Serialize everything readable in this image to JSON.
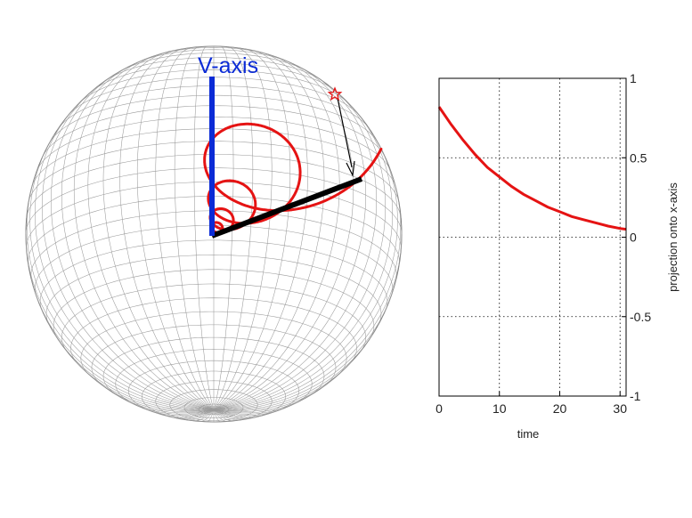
{
  "sphere": {
    "axis_label": "V-axis",
    "colors": {
      "v_axis": "#0b2bd6",
      "trajectory": "#e51313",
      "x_axis_line": "#000000",
      "grid": "#9a9a9a"
    },
    "icons": {
      "start_marker": "red-star",
      "arrow": "black-arrow"
    }
  },
  "chart_data": {
    "type": "line",
    "title": "",
    "xlabel": "time",
    "ylabel": "projection onto x-axis",
    "xlim": [
      0,
      31
    ],
    "ylim": [
      -1,
      1
    ],
    "xticks": [
      0,
      10,
      20,
      30
    ],
    "yticks": [
      -1,
      -0.5,
      0,
      0.5,
      1
    ],
    "ytick_labels": [
      "-1",
      "-0.5",
      "0",
      "0.5",
      "1"
    ],
    "y_axis_side": "right",
    "grid": true,
    "grid_style": "dotted",
    "legend": "none",
    "series": [
      {
        "color": "#e51313",
        "x": [
          0,
          2,
          4,
          6,
          8,
          10,
          12,
          14,
          16,
          18,
          20,
          22,
          24,
          26,
          28,
          30,
          31
        ],
        "y": [
          0.82,
          0.71,
          0.61,
          0.52,
          0.44,
          0.38,
          0.32,
          0.27,
          0.23,
          0.19,
          0.16,
          0.13,
          0.11,
          0.09,
          0.07,
          0.055,
          0.05
        ]
      }
    ]
  }
}
